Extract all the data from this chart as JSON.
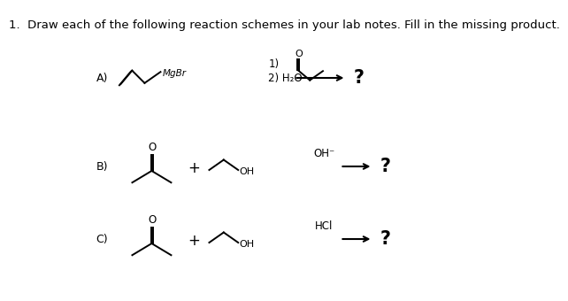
{
  "title": "1.  Draw each of the following reaction schemes in your lab notes. Fill in the missing product.",
  "title_fontsize": 9.5,
  "bg_color": "#ffffff",
  "text_color": "#000000",
  "label_A": "A)",
  "label_B": "B)",
  "label_C": "C)",
  "question_mark": "?",
  "reagent_A_line1": "1)",
  "reagent_A_line2": "2) H₂O",
  "reagent_B": "OH⁻",
  "reagent_C": "HCl",
  "MgBr": "MgBr"
}
